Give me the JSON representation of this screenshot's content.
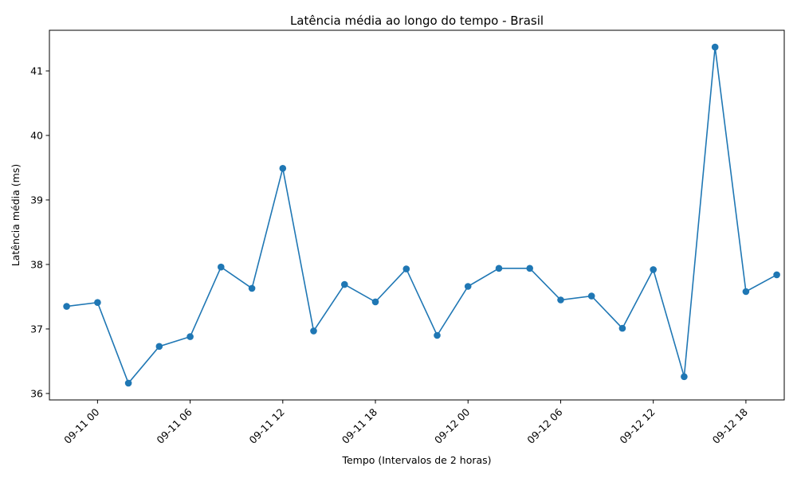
{
  "chart_data": {
    "type": "line",
    "title": "Latência média ao longo do tempo - Brasil",
    "xlabel": "Tempo (Intervalos de 2 horas)",
    "ylabel": "Latência média (ms)",
    "xlim": [
      "2023-09-10 20:53",
      "2023-09-12 20:29"
    ],
    "ylim": [
      35.9,
      41.63
    ],
    "x_ticks": [
      {
        "value": "2023-09-11 00:00",
        "label": "09-11 00"
      },
      {
        "value": "2023-09-11 06:00",
        "label": "09-11 06"
      },
      {
        "value": "2023-09-11 12:00",
        "label": "09-11 12"
      },
      {
        "value": "2023-09-11 18:00",
        "label": "09-11 18"
      },
      {
        "value": "2023-09-12 00:00",
        "label": "09-12 00"
      },
      {
        "value": "2023-09-12 06:00",
        "label": "09-12 06"
      },
      {
        "value": "2023-09-12 12:00",
        "label": "09-12 12"
      },
      {
        "value": "2023-09-12 18:00",
        "label": "09-12 18"
      }
    ],
    "y_ticks": [
      36,
      37,
      38,
      39,
      40,
      41
    ],
    "grid": false,
    "line_color": "#1f77b4",
    "series": [
      {
        "x": [
          "2023-09-10 22:00",
          "2023-09-11 00:00",
          "2023-09-11 02:00",
          "2023-09-11 04:00",
          "2023-09-11 06:00",
          "2023-09-11 08:00",
          "2023-09-11 10:00",
          "2023-09-11 12:00",
          "2023-09-11 14:00",
          "2023-09-11 16:00",
          "2023-09-11 18:00",
          "2023-09-11 20:00",
          "2023-09-11 22:00",
          "2023-09-12 00:00",
          "2023-09-12 02:00",
          "2023-09-12 04:00",
          "2023-09-12 06:00",
          "2023-09-12 08:00",
          "2023-09-12 10:00",
          "2023-09-12 12:00",
          "2023-09-12 14:00",
          "2023-09-12 16:00",
          "2023-09-12 18:00",
          "2023-09-12 20:00"
        ],
        "values": [
          37.35,
          37.41,
          36.16,
          36.73,
          36.88,
          37.96,
          37.63,
          39.49,
          36.97,
          37.69,
          37.42,
          37.93,
          36.9,
          37.66,
          37.94,
          37.94,
          37.45,
          37.51,
          37.01,
          37.92,
          36.26,
          41.37,
          37.58,
          37.84
        ]
      }
    ]
  }
}
